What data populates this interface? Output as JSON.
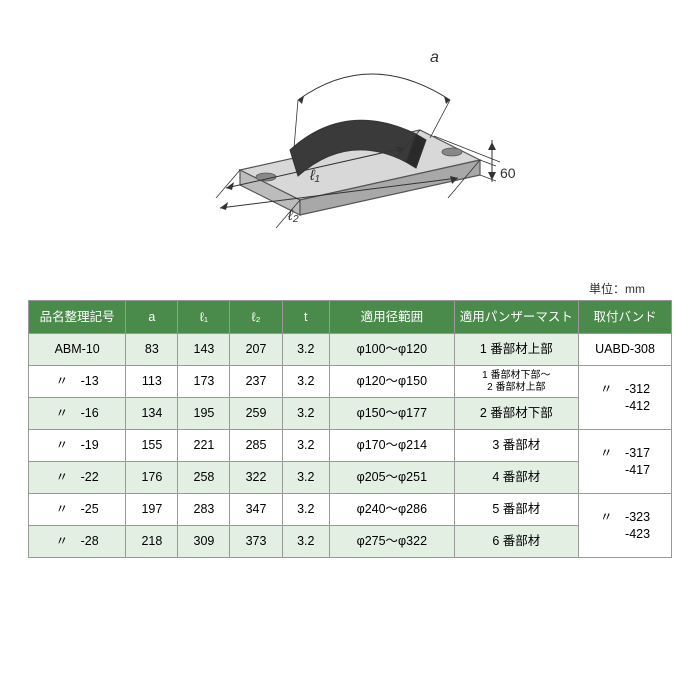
{
  "unit_label": "単位：mm",
  "diagram": {
    "label_a": "a",
    "label_l1": "ℓ₁",
    "label_l2": "ℓ₂",
    "label_h": "60"
  },
  "table": {
    "headers": {
      "name": "品名整理記号",
      "a": "a",
      "l1": "ℓ₁",
      "l2": "ℓ₂",
      "t": "t",
      "range": "適用径範囲",
      "mast": "適用パンザーマスト",
      "band": "取付バンド"
    },
    "rows": [
      {
        "name": "ABM-10",
        "a": "83",
        "l1": "143",
        "l2": "207",
        "t": "3.2",
        "range": "φ100～φ120",
        "mast": "1 番部材上部"
      },
      {
        "name": "〃　-13",
        "a": "113",
        "l1": "173",
        "l2": "237",
        "t": "3.2",
        "range": "φ120～φ150",
        "mast": "1 番部材下部～\n2 番部材上部"
      },
      {
        "name": "〃　-16",
        "a": "134",
        "l1": "195",
        "l2": "259",
        "t": "3.2",
        "range": "φ150～φ177",
        "mast": "2 番部材下部"
      },
      {
        "name": "〃　-19",
        "a": "155",
        "l1": "221",
        "l2": "285",
        "t": "3.2",
        "range": "φ170～φ214",
        "mast": "3 番部材"
      },
      {
        "name": "〃　-22",
        "a": "176",
        "l1": "258",
        "l2": "322",
        "t": "3.2",
        "range": "φ205～φ251",
        "mast": "4 番部材"
      },
      {
        "name": "〃　-25",
        "a": "197",
        "l1": "283",
        "l2": "347",
        "t": "3.2",
        "range": "φ240～φ286",
        "mast": "5 番部材"
      },
      {
        "name": "〃　-28",
        "a": "218",
        "l1": "309",
        "l2": "373",
        "t": "3.2",
        "range": "φ275～φ322",
        "mast": "6 番部材"
      }
    ],
    "bands": [
      {
        "rowspan": 1,
        "text": "UABD-308"
      },
      {
        "rowspan": 2,
        "text": "〃　-312\n　　-412"
      },
      {
        "rowspan": 2,
        "text": "〃　-317\n　　-417"
      },
      {
        "rowspan": 2,
        "text": "〃　-323\n　　-423"
      }
    ]
  },
  "colors": {
    "header_bg": "#4a8a4a",
    "header_fg": "#ffffff",
    "row_green": "#e4efe4",
    "row_white": "#ffffff",
    "border": "#999999",
    "text": "#333333"
  }
}
